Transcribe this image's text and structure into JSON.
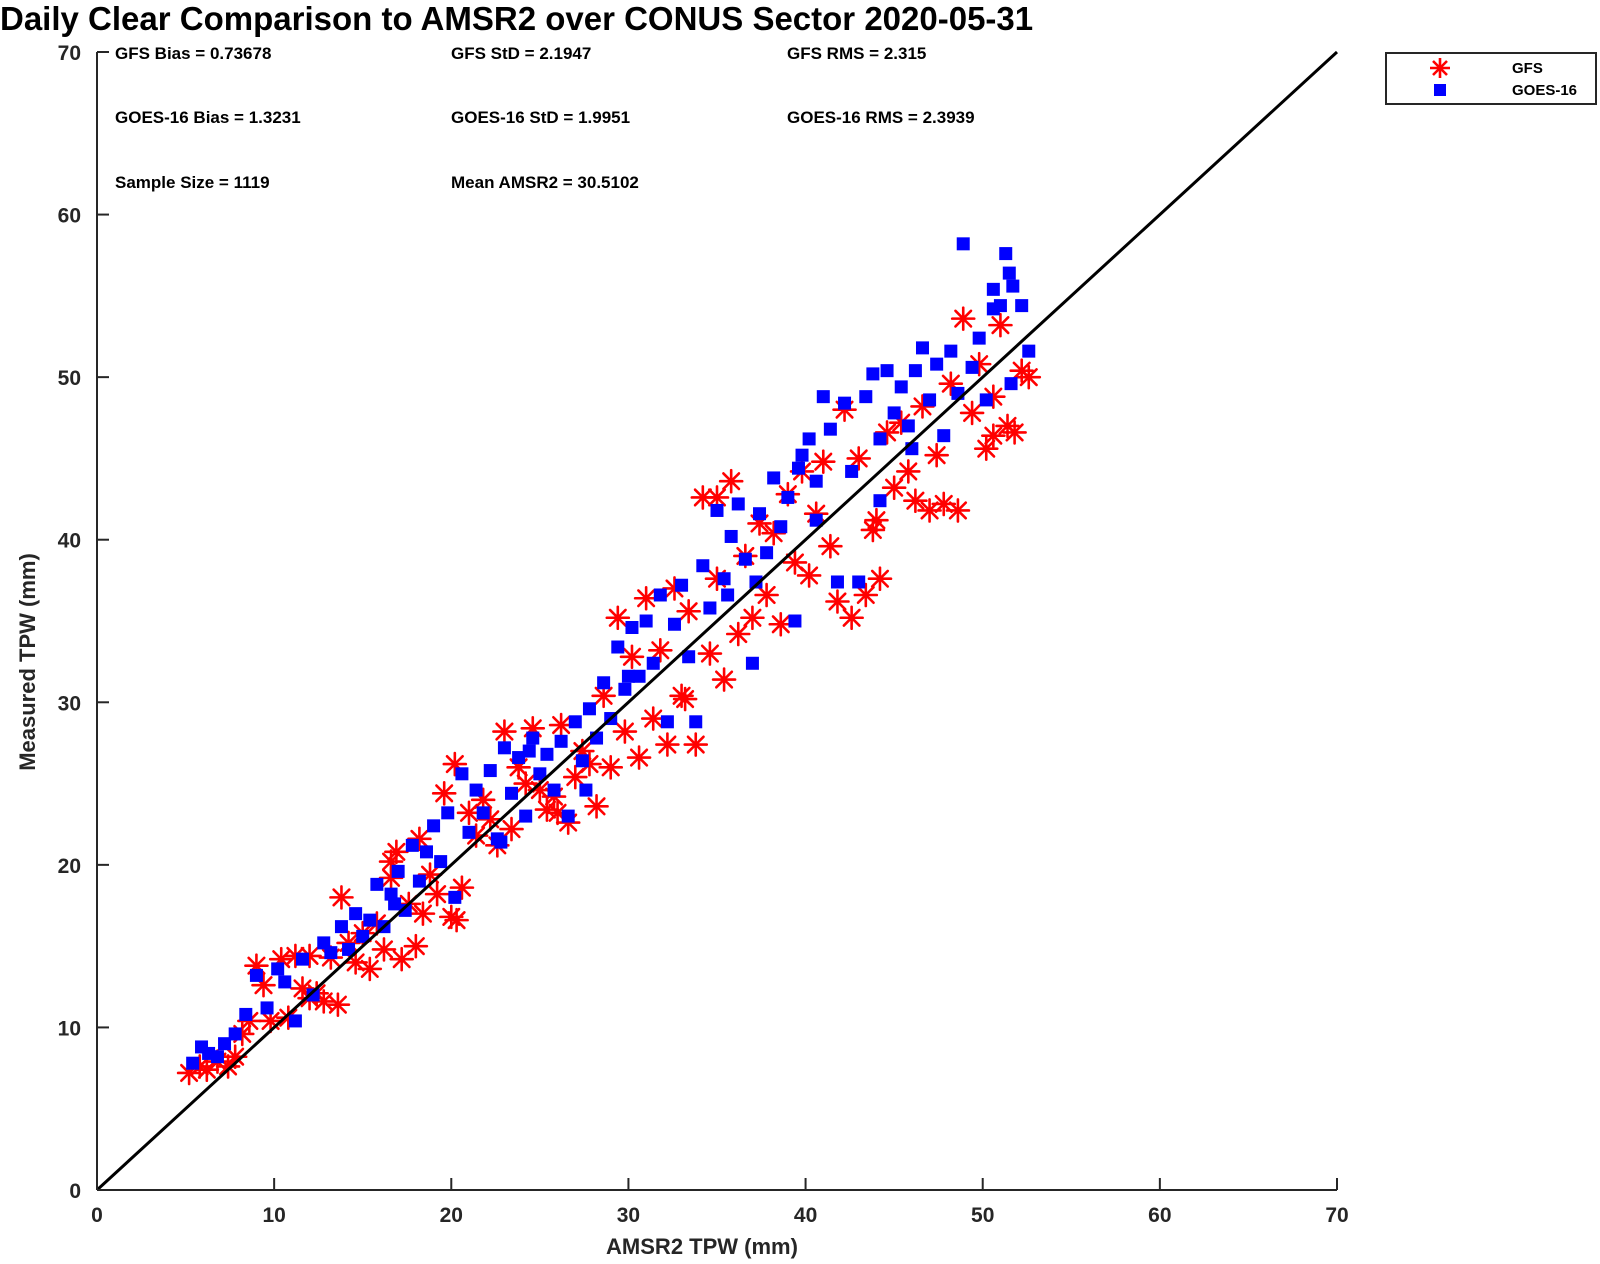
{
  "chart_data": {
    "type": "scatter",
    "title": "Daily Clear Comparison to AMSR2 over CONUS Sector 2020-05-31",
    "xlabel": "AMSR2 TPW (mm)",
    "ylabel": "Measured TPW (mm)",
    "xlim": [
      0,
      70
    ],
    "ylim": [
      0,
      70
    ],
    "xticks": [
      "0",
      "10",
      "20",
      "30",
      "40",
      "50",
      "60",
      "70"
    ],
    "yticks": [
      "0",
      "10",
      "20",
      "30",
      "40",
      "50",
      "60",
      "70"
    ],
    "grid": false,
    "legend_position": "outside-top-right",
    "reference_line": {
      "x": [
        0,
        70
      ],
      "y": [
        0,
        70
      ],
      "color": "#000000"
    },
    "stats": [
      "GFS Bias = 0.73678",
      "GFS StD = 2.1947",
      "GFS RMS = 2.315",
      "GOES-16 Bias = 1.3231",
      "GOES-16 StD = 1.9951",
      "GOES-16 RMS = 2.3939",
      "Sample Size = 1119",
      "Mean AMSR2 = 30.5102"
    ],
    "series": [
      {
        "name": "GFS",
        "marker": "asterisk",
        "color": "#ff0000",
        "points": [
          [
            5.2,
            7.2
          ],
          [
            5.8,
            7.6
          ],
          [
            6.2,
            7.4
          ],
          [
            6.8,
            7.9
          ],
          [
            7.4,
            7.6
          ],
          [
            7.8,
            8.2
          ],
          [
            8.2,
            9.6
          ],
          [
            8.6,
            10.4
          ],
          [
            9.0,
            13.8
          ],
          [
            9.4,
            12.6
          ],
          [
            9.8,
            10.4
          ],
          [
            10.4,
            14.2
          ],
          [
            10.8,
            10.6
          ],
          [
            11.2,
            14.4
          ],
          [
            11.6,
            12.4
          ],
          [
            12.0,
            14.4
          ],
          [
            12.4,
            12.1
          ],
          [
            12.8,
            11.6
          ],
          [
            13.2,
            14.3
          ],
          [
            13.6,
            11.4
          ],
          [
            13.8,
            18.0
          ],
          [
            14.2,
            15.2
          ],
          [
            14.6,
            14.0
          ],
          [
            15.0,
            15.8
          ],
          [
            15.4,
            13.6
          ],
          [
            15.8,
            16.4
          ],
          [
            16.2,
            14.8
          ],
          [
            16.6,
            19.2
          ],
          [
            16.9,
            20.8
          ],
          [
            17.2,
            14.2
          ],
          [
            17.6,
            17.6
          ],
          [
            18.0,
            15.0
          ],
          [
            18.4,
            17.0
          ],
          [
            18.8,
            19.4
          ],
          [
            19.2,
            18.2
          ],
          [
            19.6,
            24.4
          ],
          [
            20.0,
            16.8
          ],
          [
            20.2,
            26.2
          ],
          [
            20.6,
            18.6
          ],
          [
            21.0,
            23.2
          ],
          [
            21.4,
            21.8
          ],
          [
            21.8,
            24.0
          ],
          [
            22.2,
            22.8
          ],
          [
            22.6,
            21.2
          ],
          [
            23.0,
            28.2
          ],
          [
            23.4,
            22.2
          ],
          [
            23.8,
            26.0
          ],
          [
            24.2,
            25.0
          ],
          [
            24.6,
            28.4
          ],
          [
            25.0,
            24.6
          ],
          [
            25.4,
            23.4
          ],
          [
            25.8,
            24.2
          ],
          [
            26.2,
            28.6
          ],
          [
            26.6,
            22.6
          ],
          [
            27.0,
            25.4
          ],
          [
            27.4,
            27.0
          ],
          [
            27.8,
            26.2
          ],
          [
            28.2,
            23.6
          ],
          [
            28.6,
            30.4
          ],
          [
            29.0,
            26.0
          ],
          [
            29.4,
            35.2
          ],
          [
            29.8,
            28.2
          ],
          [
            30.2,
            32.8
          ],
          [
            30.6,
            26.6
          ],
          [
            31.0,
            36.4
          ],
          [
            31.4,
            29.0
          ],
          [
            31.8,
            33.2
          ],
          [
            32.2,
            27.4
          ],
          [
            32.6,
            37.0
          ],
          [
            33.0,
            30.4
          ],
          [
            33.4,
            35.6
          ],
          [
            33.8,
            27.4
          ],
          [
            34.2,
            42.6
          ],
          [
            34.6,
            33.0
          ],
          [
            35.0,
            37.6
          ],
          [
            35.4,
            31.4
          ],
          [
            35.8,
            43.6
          ],
          [
            36.2,
            34.2
          ],
          [
            36.6,
            39.0
          ],
          [
            37.0,
            35.2
          ],
          [
            37.4,
            41.0
          ],
          [
            37.8,
            36.6
          ],
          [
            38.2,
            40.4
          ],
          [
            38.6,
            34.8
          ],
          [
            39.0,
            42.8
          ],
          [
            39.4,
            38.6
          ],
          [
            39.8,
            44.2
          ],
          [
            40.2,
            37.8
          ],
          [
            40.6,
            41.6
          ],
          [
            41.0,
            44.8
          ],
          [
            41.4,
            39.6
          ],
          [
            41.8,
            36.2
          ],
          [
            42.2,
            48.0
          ],
          [
            42.6,
            35.2
          ],
          [
            43.0,
            45.0
          ],
          [
            43.4,
            36.6
          ],
          [
            43.8,
            40.6
          ],
          [
            44.2,
            37.6
          ],
          [
            44.6,
            46.6
          ],
          [
            45.0,
            43.2
          ],
          [
            45.4,
            47.2
          ],
          [
            45.8,
            44.2
          ],
          [
            46.2,
            42.4
          ],
          [
            46.6,
            48.2
          ],
          [
            47.0,
            41.8
          ],
          [
            47.4,
            45.2
          ],
          [
            47.8,
            42.2
          ],
          [
            48.2,
            49.6
          ],
          [
            48.6,
            41.8
          ],
          [
            48.9,
            53.6
          ],
          [
            49.4,
            47.8
          ],
          [
            49.8,
            50.8
          ],
          [
            50.2,
            45.6
          ],
          [
            50.6,
            48.8
          ],
          [
            51.0,
            53.2
          ],
          [
            51.4,
            47.0
          ],
          [
            51.8,
            46.6
          ],
          [
            52.2,
            50.4
          ],
          [
            52.6,
            50.0
          ],
          [
            35.0,
            42.6
          ],
          [
            26.0,
            23.2
          ],
          [
            20.3,
            16.6
          ],
          [
            18.2,
            21.6
          ],
          [
            16.6,
            20.2
          ],
          [
            12.0,
            11.8
          ],
          [
            33.2,
            30.2
          ],
          [
            44.0,
            41.2
          ],
          [
            50.6,
            46.4
          ]
        ]
      },
      {
        "name": "GOES-16",
        "marker": "square",
        "color": "#0000ff",
        "points": [
          [
            5.4,
            7.8
          ],
          [
            5.9,
            8.8
          ],
          [
            6.3,
            8.4
          ],
          [
            6.8,
            8.2
          ],
          [
            7.2,
            9.0
          ],
          [
            7.8,
            9.6
          ],
          [
            8.4,
            10.8
          ],
          [
            9.0,
            13.2
          ],
          [
            9.6,
            11.2
          ],
          [
            10.2,
            13.6
          ],
          [
            10.6,
            12.8
          ],
          [
            11.2,
            10.4
          ],
          [
            11.6,
            14.2
          ],
          [
            12.2,
            12.0
          ],
          [
            12.8,
            15.2
          ],
          [
            13.2,
            14.6
          ],
          [
            13.8,
            16.2
          ],
          [
            14.2,
            14.8
          ],
          [
            14.6,
            17.0
          ],
          [
            15.0,
            15.6
          ],
          [
            15.4,
            16.6
          ],
          [
            15.8,
            18.8
          ],
          [
            16.2,
            16.2
          ],
          [
            16.6,
            18.2
          ],
          [
            17.0,
            19.6
          ],
          [
            17.4,
            17.2
          ],
          [
            17.8,
            21.2
          ],
          [
            18.2,
            19.0
          ],
          [
            18.6,
            20.8
          ],
          [
            19.0,
            22.4
          ],
          [
            19.4,
            20.2
          ],
          [
            19.8,
            23.2
          ],
          [
            20.2,
            18.0
          ],
          [
            20.6,
            25.6
          ],
          [
            21.0,
            22.0
          ],
          [
            21.4,
            24.6
          ],
          [
            21.8,
            23.2
          ],
          [
            22.2,
            25.8
          ],
          [
            22.6,
            21.6
          ],
          [
            23.0,
            27.2
          ],
          [
            23.4,
            24.4
          ],
          [
            23.8,
            26.6
          ],
          [
            24.2,
            23.0
          ],
          [
            24.6,
            27.8
          ],
          [
            25.0,
            25.6
          ],
          [
            25.4,
            26.8
          ],
          [
            25.8,
            24.6
          ],
          [
            26.2,
            27.6
          ],
          [
            26.6,
            23.0
          ],
          [
            27.0,
            28.8
          ],
          [
            27.4,
            26.4
          ],
          [
            27.8,
            29.6
          ],
          [
            28.2,
            27.8
          ],
          [
            28.6,
            31.2
          ],
          [
            29.0,
            29.0
          ],
          [
            29.4,
            33.4
          ],
          [
            29.8,
            30.8
          ],
          [
            30.2,
            34.6
          ],
          [
            30.6,
            31.6
          ],
          [
            31.0,
            35.0
          ],
          [
            31.4,
            32.4
          ],
          [
            31.8,
            36.6
          ],
          [
            32.2,
            28.8
          ],
          [
            32.6,
            34.8
          ],
          [
            33.0,
            37.2
          ],
          [
            33.4,
            32.8
          ],
          [
            33.8,
            28.8
          ],
          [
            34.2,
            38.4
          ],
          [
            34.6,
            35.8
          ],
          [
            35.0,
            41.8
          ],
          [
            35.4,
            37.6
          ],
          [
            35.8,
            40.2
          ],
          [
            36.2,
            42.2
          ],
          [
            36.6,
            38.8
          ],
          [
            37.0,
            32.4
          ],
          [
            37.4,
            41.6
          ],
          [
            37.8,
            39.2
          ],
          [
            38.2,
            43.8
          ],
          [
            38.6,
            40.8
          ],
          [
            39.0,
            42.6
          ],
          [
            39.4,
            35.0
          ],
          [
            39.8,
            45.2
          ],
          [
            40.2,
            46.2
          ],
          [
            40.6,
            43.6
          ],
          [
            41.0,
            48.8
          ],
          [
            41.4,
            46.8
          ],
          [
            41.8,
            37.4
          ],
          [
            42.2,
            48.4
          ],
          [
            42.6,
            44.2
          ],
          [
            43.0,
            37.4
          ],
          [
            43.4,
            48.8
          ],
          [
            43.8,
            50.2
          ],
          [
            44.2,
            46.2
          ],
          [
            44.6,
            50.4
          ],
          [
            45.0,
            47.8
          ],
          [
            45.4,
            49.4
          ],
          [
            45.8,
            47.0
          ],
          [
            46.2,
            50.4
          ],
          [
            46.6,
            51.8
          ],
          [
            47.0,
            48.6
          ],
          [
            47.4,
            50.8
          ],
          [
            47.8,
            46.4
          ],
          [
            48.2,
            51.6
          ],
          [
            48.6,
            49.0
          ],
          [
            48.9,
            58.2
          ],
          [
            49.4,
            50.6
          ],
          [
            49.8,
            52.4
          ],
          [
            50.2,
            48.6
          ],
          [
            50.6,
            54.2
          ],
          [
            50.6,
            55.4
          ],
          [
            51.0,
            54.4
          ],
          [
            51.3,
            57.6
          ],
          [
            51.5,
            56.4
          ],
          [
            51.7,
            55.6
          ],
          [
            52.2,
            54.4
          ],
          [
            52.6,
            51.6
          ],
          [
            51.6,
            49.6
          ],
          [
            40.6,
            41.2
          ],
          [
            30.0,
            31.6
          ],
          [
            22.8,
            21.4
          ],
          [
            27.6,
            24.6
          ],
          [
            37.2,
            37.4
          ],
          [
            35.6,
            36.6
          ],
          [
            46.0,
            45.6
          ],
          [
            39.6,
            44.4
          ],
          [
            44.2,
            42.4
          ],
          [
            24.4,
            27.0
          ],
          [
            16.8,
            17.6
          ]
        ]
      }
    ]
  }
}
